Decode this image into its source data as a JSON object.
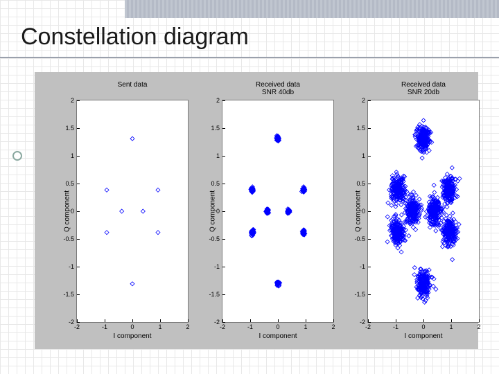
{
  "title": "Constellation diagram",
  "figure": {
    "background_color": "#c0c0c0",
    "plot_background": "#ffffff",
    "axis_color": "#000000",
    "tick_fontsize": 9,
    "label_fontsize": 10,
    "title_fontsize": 10,
    "marker_edge_color": "#0000ff",
    "marker_fill": "none",
    "marker_shape": "diamond",
    "marker_size": 6,
    "xlim": [
      -2,
      2
    ],
    "ylim": [
      -2,
      2
    ],
    "xticks": [
      -2,
      -1,
      0,
      1,
      2
    ],
    "yticks": [
      -2,
      -1.5,
      -1,
      -0.5,
      0,
      0.5,
      1,
      1.5,
      2
    ],
    "ytick_labels": [
      "-2",
      "-1.5",
      "-1",
      "-0.5",
      "0",
      "0.5",
      "1",
      "1.5",
      "2"
    ],
    "xtick_labels": [
      "-2",
      "-1",
      "0",
      "1",
      "2"
    ],
    "xlabel": "I component",
    "ylabel": "Q component",
    "ideal_points": [
      [
        0,
        1.31
      ],
      [
        0,
        -1.31
      ],
      [
        0.924,
        0.383
      ],
      [
        -0.924,
        0.383
      ],
      [
        0.924,
        -0.383
      ],
      [
        -0.924,
        -0.383
      ],
      [
        0.383,
        0
      ],
      [
        -0.383,
        0
      ]
    ],
    "subplots": [
      {
        "title": "Sent data",
        "noise_sigma": 0.0,
        "n_per_point": 1
      },
      {
        "title": "Received data\nSNR 40db",
        "noise_sigma": 0.02,
        "n_per_point": 60
      },
      {
        "title": "Received data\nSNR 20db",
        "noise_sigma": 0.12,
        "n_per_point": 200
      }
    ]
  }
}
